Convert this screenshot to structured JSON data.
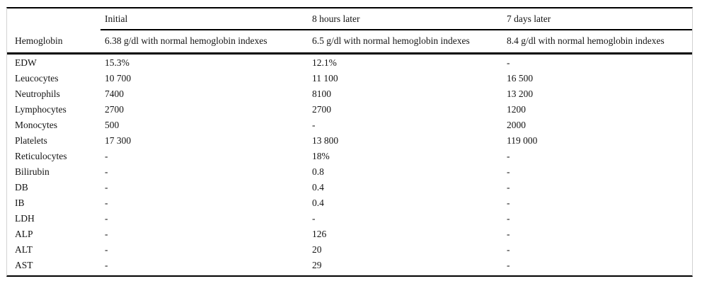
{
  "table": {
    "columns": [
      "",
      "Initial",
      "8 hours later",
      "7 days later"
    ],
    "hemoglobin": {
      "label": "Hemoglobin",
      "values": [
        "6.38 g/dl with normal hemoglobin indexes",
        "6.5 g/dl with normal hemoglobin indexes",
        "8.4 g/dl with normal hemoglobin indexes"
      ]
    },
    "rows": [
      {
        "label": "EDW",
        "values": [
          "15.3%",
          "12.1%",
          "-"
        ]
      },
      {
        "label": "Leucocytes",
        "values": [
          "10 700",
          "11 100",
          "16 500"
        ]
      },
      {
        "label": "Neutrophils",
        "values": [
          "7400",
          "8100",
          "13 200"
        ]
      },
      {
        "label": "Lymphocytes",
        "values": [
          "2700",
          "2700",
          "1200"
        ]
      },
      {
        "label": "Monocytes",
        "values": [
          "500",
          "-",
          "2000"
        ]
      },
      {
        "label": "Platelets",
        "values": [
          "17 300",
          "13 800",
          "119 000"
        ]
      },
      {
        "label": "Reticulocytes",
        "values": [
          "-",
          "18%",
          "-"
        ]
      },
      {
        "label": "Bilirubin",
        "values": [
          "-",
          "0.8",
          "-"
        ]
      },
      {
        "label": "DB",
        "values": [
          "-",
          "0.4",
          "-"
        ]
      },
      {
        "label": "IB",
        "values": [
          "-",
          "0.4",
          "-"
        ]
      },
      {
        "label": "LDH",
        "values": [
          "-",
          "-",
          "-"
        ]
      },
      {
        "label": "ALP",
        "values": [
          "-",
          "126",
          "-"
        ]
      },
      {
        "label": "ALT",
        "values": [
          "-",
          "20",
          "-"
        ]
      },
      {
        "label": "AST",
        "values": [
          "-",
          "29",
          "-"
        ]
      }
    ],
    "colors": {
      "rule": "#000000",
      "faint_edge": "#d2d2d2",
      "text": "#141414",
      "background": "#ffffff"
    }
  }
}
